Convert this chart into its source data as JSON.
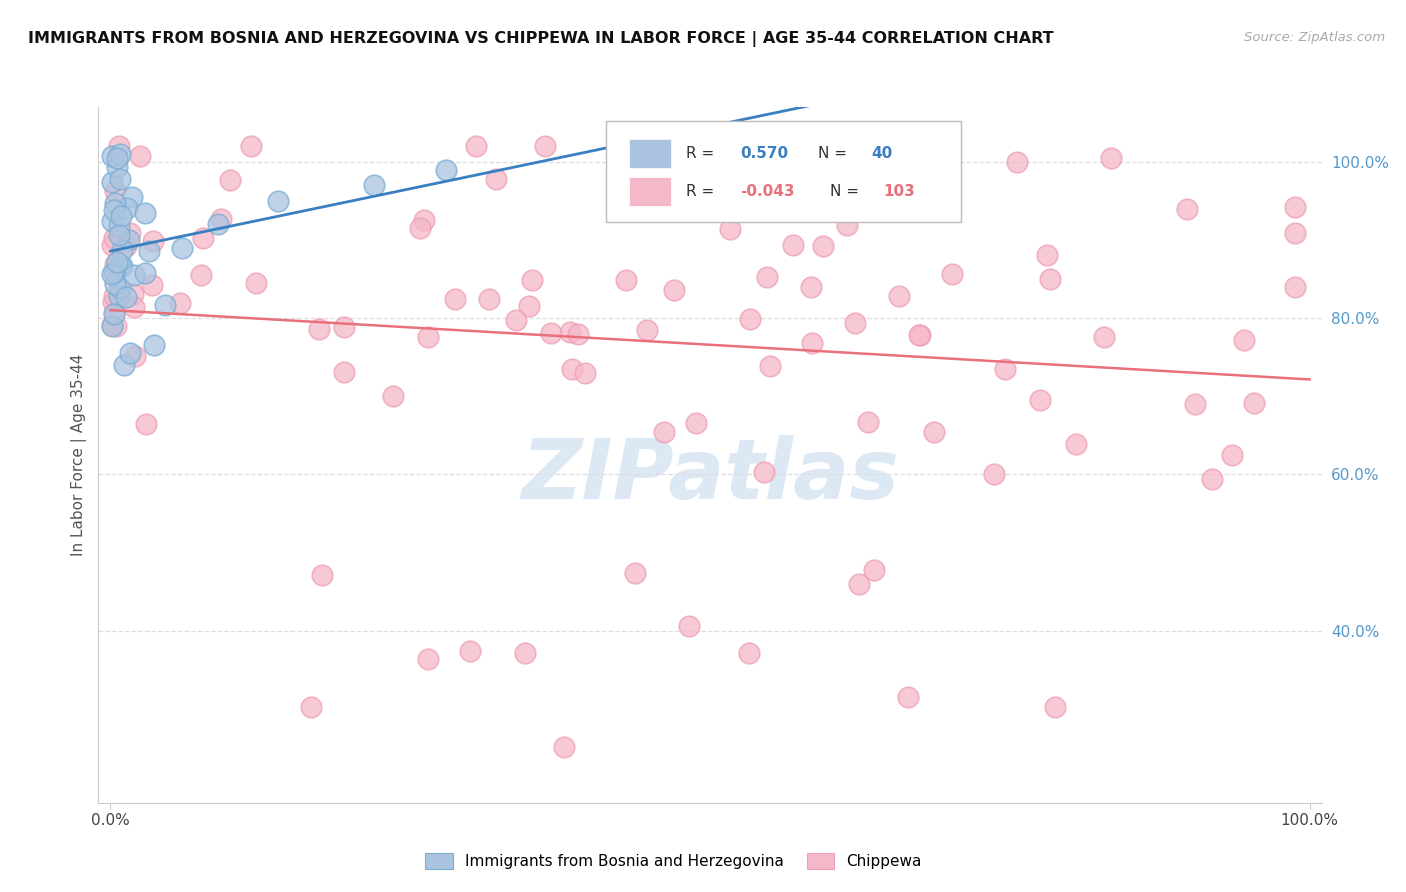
{
  "title": "IMMIGRANTS FROM BOSNIA AND HERZEGOVINA VS CHIPPEWA IN LABOR FORCE | AGE 35-44 CORRELATION CHART",
  "source": "Source: ZipAtlas.com",
  "ylabel": "In Labor Force | Age 35-44",
  "legend_bosnia_r": "0.570",
  "legend_bosnia_n": "40",
  "legend_chippewa_r": "-0.043",
  "legend_chippewa_n": "103",
  "bosnia_color": "#aac4e0",
  "chippewa_color": "#f5b8c8",
  "bosnia_edge_color": "#7aadd4",
  "chippewa_edge_color": "#eda0b4",
  "bosnia_line_color": "#3a7fc1",
  "chippewa_line_color": "#e8707a",
  "ytick_color": "#5599cc",
  "watermark_color": "#dde8f5",
  "grid_color": "#dddddd",
  "spine_color": "#cccccc",
  "title_color": "#111111",
  "source_color": "#aaaaaa",
  "ylabel_color": "#555555"
}
